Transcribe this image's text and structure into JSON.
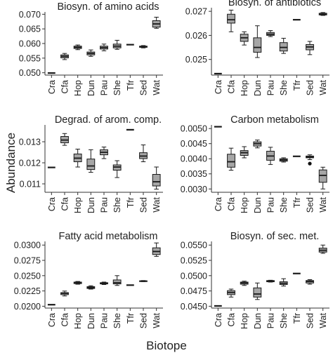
{
  "ylabel": "Abundance",
  "xlabel": "Biotope",
  "chart_data": [
    {
      "type": "box",
      "title": "Biosyn. of amino acids",
      "categories": [
        "Cra",
        "Cfa",
        "Hop",
        "Dun",
        "Pau",
        "She",
        "Tfr",
        "Sed",
        "Wat"
      ],
      "yticks": [
        0.05,
        0.055,
        0.06,
        0.065,
        0.07
      ],
      "ytick_labels": [
        "0.050",
        "0.055",
        "0.060",
        "0.065",
        "0.070"
      ],
      "ylim": [
        0.0492,
        0.0708
      ],
      "boxes": [
        {
          "min": 0.0499,
          "q1": 0.0499,
          "median": 0.0499,
          "q3": 0.0499,
          "max": 0.0499
        },
        {
          "min": 0.0545,
          "q1": 0.0551,
          "median": 0.0556,
          "q3": 0.0561,
          "max": 0.0566
        },
        {
          "min": 0.0579,
          "q1": 0.0583,
          "median": 0.0587,
          "q3": 0.0591,
          "max": 0.0595
        },
        {
          "min": 0.0556,
          "q1": 0.0561,
          "median": 0.0566,
          "q3": 0.0571,
          "max": 0.0578
        },
        {
          "min": 0.0575,
          "q1": 0.0581,
          "median": 0.0586,
          "q3": 0.0591,
          "max": 0.0598
        },
        {
          "min": 0.058,
          "q1": 0.0585,
          "median": 0.0591,
          "q3": 0.0598,
          "max": 0.0611
        },
        {
          "min": 0.0596,
          "q1": 0.0596,
          "median": 0.0596,
          "q3": 0.0596,
          "max": 0.0596
        },
        {
          "min": 0.0585,
          "q1": 0.0587,
          "median": 0.0589,
          "q3": 0.0591,
          "max": 0.0593
        },
        {
          "min": 0.0652,
          "q1": 0.0656,
          "median": 0.0667,
          "q3": 0.0678,
          "max": 0.069
        }
      ],
      "outliers": []
    },
    {
      "type": "box",
      "title": "Biosyn. of antibiotics",
      "categories": [
        "Cra",
        "Cfa",
        "Hop",
        "Dun",
        "Pau",
        "She",
        "Tfr",
        "Sed",
        "Wat"
      ],
      "yticks": [
        0.025,
        0.026,
        0.027
      ],
      "ytick_labels": [
        "0.025",
        "0.026",
        "0.027"
      ],
      "ylim": [
        0.02435,
        0.02715
      ],
      "boxes": [
        {
          "min": 0.02441,
          "q1": 0.02441,
          "median": 0.02441,
          "q3": 0.02441,
          "max": 0.02441
        },
        {
          "min": 0.02615,
          "q1": 0.02651,
          "median": 0.02665,
          "q3": 0.02688,
          "max": 0.02705
        },
        {
          "min": 0.0256,
          "q1": 0.02575,
          "median": 0.0259,
          "q3": 0.02605,
          "max": 0.02615
        },
        {
          "min": 0.02508,
          "q1": 0.0253,
          "median": 0.0255,
          "q3": 0.0259,
          "max": 0.0264
        },
        {
          "min": 0.02595,
          "q1": 0.026,
          "median": 0.02605,
          "q3": 0.02612,
          "max": 0.0262
        },
        {
          "min": 0.02525,
          "q1": 0.02535,
          "median": 0.0255,
          "q3": 0.0257,
          "max": 0.02588
        },
        {
          "min": 0.02665,
          "q1": 0.02665,
          "median": 0.02665,
          "q3": 0.02665,
          "max": 0.02665
        },
        {
          "min": 0.0252,
          "q1": 0.0254,
          "median": 0.02552,
          "q3": 0.02562,
          "max": 0.02575
        },
        {
          "min": 0.02683,
          "q1": 0.02685,
          "median": 0.02688,
          "q3": 0.02692,
          "max": 0.02695
        }
      ],
      "outliers": []
    },
    {
      "type": "box",
      "title": "Degrad. of arom. comp.",
      "categories": [
        "Cra",
        "Cfa",
        "Hop",
        "Dun",
        "Pau",
        "She",
        "Tfr",
        "Sed",
        "Wat"
      ],
      "yticks": [
        0.011,
        0.012,
        0.013
      ],
      "ytick_labels": [
        "0.011",
        "0.012",
        "0.013"
      ],
      "ylim": [
        0.0106,
        0.0138
      ],
      "boxes": [
        {
          "min": 0.01178,
          "q1": 0.01178,
          "median": 0.01178,
          "q3": 0.01178,
          "max": 0.01178
        },
        {
          "min": 0.01283,
          "q1": 0.01295,
          "median": 0.01308,
          "q3": 0.01325,
          "max": 0.01339
        },
        {
          "min": 0.0118,
          "q1": 0.01205,
          "median": 0.01222,
          "q3": 0.01242,
          "max": 0.01265
        },
        {
          "min": 0.01155,
          "q1": 0.01168,
          "median": 0.01185,
          "q3": 0.01218,
          "max": 0.01262
        },
        {
          "min": 0.0122,
          "q1": 0.01238,
          "median": 0.0125,
          "q3": 0.01262,
          "max": 0.01275
        },
        {
          "min": 0.0113,
          "q1": 0.01165,
          "median": 0.0118,
          "q3": 0.0119,
          "max": 0.0121
        },
        {
          "min": 0.01357,
          "q1": 0.01357,
          "median": 0.01357,
          "q3": 0.01357,
          "max": 0.01357
        },
        {
          "min": 0.01205,
          "q1": 0.0122,
          "median": 0.01232,
          "q3": 0.01248,
          "max": 0.01285
        },
        {
          "min": 0.01075,
          "q1": 0.0109,
          "median": 0.0111,
          "q3": 0.01145,
          "max": 0.0118
        }
      ],
      "outliers": []
    },
    {
      "type": "box",
      "title": "Carbon metabolism",
      "categories": [
        "Cra",
        "Cfa",
        "Hop",
        "Dun",
        "Pau",
        "She",
        "Tfr",
        "Sed",
        "Wat"
      ],
      "yticks": [
        0.003,
        0.0035,
        0.004,
        0.0045,
        0.005
      ],
      "ytick_labels": [
        "0.0030",
        "0.0035",
        "0.0040",
        "0.0045",
        "0.0050"
      ],
      "ylim": [
        0.00289,
        0.00512
      ],
      "boxes": [
        {
          "min": 0.00506,
          "q1": 0.00506,
          "median": 0.00506,
          "q3": 0.00506,
          "max": 0.00506
        },
        {
          "min": 0.00362,
          "q1": 0.00372,
          "median": 0.0039,
          "q3": 0.00415,
          "max": 0.00435
        },
        {
          "min": 0.00403,
          "q1": 0.00411,
          "median": 0.0042,
          "q3": 0.00427,
          "max": 0.0044
        },
        {
          "min": 0.00436,
          "q1": 0.00442,
          "median": 0.0045,
          "q3": 0.00456,
          "max": 0.00462
        },
        {
          "min": 0.00381,
          "q1": 0.00395,
          "median": 0.00409,
          "q3": 0.00425,
          "max": 0.00438
        },
        {
          "min": 0.00389,
          "q1": 0.00392,
          "median": 0.00396,
          "q3": 0.004,
          "max": 0.00403
        },
        {
          "min": 0.00408,
          "q1": 0.00408,
          "median": 0.00408,
          "q3": 0.00408,
          "max": 0.00408
        },
        {
          "min": 0.00397,
          "q1": 0.00403,
          "median": 0.00406,
          "q3": 0.00409,
          "max": 0.00413
        },
        {
          "min": 0.003,
          "q1": 0.00322,
          "median": 0.00345,
          "q3": 0.00363,
          "max": 0.00372
        }
      ],
      "outliers": [
        {
          "category": "Sed",
          "value": 0.00384
        }
      ]
    },
    {
      "type": "box",
      "title": "Fatty acid metabolism",
      "categories": [
        "Cra",
        "Cfa",
        "Hop",
        "Dun",
        "Pau",
        "She",
        "Tfr",
        "Sed",
        "Wat"
      ],
      "yticks": [
        0.02,
        0.0225,
        0.025,
        0.0275,
        0.03
      ],
      "ytick_labels": [
        "0.0200",
        "0.0225",
        "0.0250",
        "0.0275",
        "0.0300"
      ],
      "ylim": [
        0.0197,
        0.0306
      ],
      "boxes": [
        {
          "min": 0.02025,
          "q1": 0.02025,
          "median": 0.02025,
          "q3": 0.02025,
          "max": 0.02025
        },
        {
          "min": 0.02168,
          "q1": 0.0219,
          "median": 0.02212,
          "q3": 0.02222,
          "max": 0.02248
        },
        {
          "min": 0.0236,
          "q1": 0.0237,
          "median": 0.02385,
          "q3": 0.02395,
          "max": 0.02405
        },
        {
          "min": 0.0228,
          "q1": 0.0229,
          "median": 0.02305,
          "q3": 0.0232,
          "max": 0.02335
        },
        {
          "min": 0.02355,
          "q1": 0.02365,
          "median": 0.02375,
          "q3": 0.02385,
          "max": 0.02395
        },
        {
          "min": 0.0234,
          "q1": 0.02365,
          "median": 0.02385,
          "q3": 0.0243,
          "max": 0.025
        },
        {
          "min": 0.02345,
          "q1": 0.02345,
          "median": 0.02345,
          "q3": 0.02345,
          "max": 0.02345
        },
        {
          "min": 0.02402,
          "q1": 0.02405,
          "median": 0.0241,
          "q3": 0.02415,
          "max": 0.0242
        },
        {
          "min": 0.02815,
          "q1": 0.02845,
          "median": 0.02895,
          "q3": 0.02955,
          "max": 0.03035
        }
      ],
      "outliers": []
    },
    {
      "type": "box",
      "title": "Biosyn. of sec. met.",
      "categories": [
        "Cra",
        "Cfa",
        "Hop",
        "Dun",
        "Pau",
        "She",
        "Tfr",
        "Sed",
        "Wat"
      ],
      "yticks": [
        0.045,
        0.0475,
        0.05,
        0.0525,
        0.055
      ],
      "ytick_labels": [
        "0.0450",
        "0.0475",
        "0.0500",
        "0.0525",
        "0.0550"
      ],
      "ylim": [
        0.0447,
        0.0556
      ],
      "boxes": [
        {
          "min": 0.04505,
          "q1": 0.04505,
          "median": 0.04505,
          "q3": 0.04505,
          "max": 0.04505
        },
        {
          "min": 0.0465,
          "q1": 0.0469,
          "median": 0.04725,
          "q3": 0.04755,
          "max": 0.0478
        },
        {
          "min": 0.0484,
          "q1": 0.0486,
          "median": 0.0488,
          "q3": 0.04895,
          "max": 0.0491
        },
        {
          "min": 0.0461,
          "q1": 0.0465,
          "median": 0.047,
          "q3": 0.048,
          "max": 0.0488
        },
        {
          "min": 0.04895,
          "q1": 0.049,
          "median": 0.0491,
          "q3": 0.0492,
          "max": 0.04925
        },
        {
          "min": 0.0483,
          "q1": 0.04855,
          "median": 0.04875,
          "q3": 0.049,
          "max": 0.0495
        },
        {
          "min": 0.05035,
          "q1": 0.05035,
          "median": 0.05035,
          "q3": 0.05035,
          "max": 0.05035
        },
        {
          "min": 0.0486,
          "q1": 0.0488,
          "median": 0.04905,
          "q3": 0.0492,
          "max": 0.04935
        },
        {
          "min": 0.05365,
          "q1": 0.05385,
          "median": 0.05415,
          "q3": 0.0545,
          "max": 0.055
        }
      ],
      "outliers": []
    }
  ],
  "style": {
    "box_fill": "#a6a6a6",
    "line_color": "#1a1a1a",
    "text_color": "#222222",
    "tick_color": "#333333",
    "outlier_color": "#111111"
  }
}
